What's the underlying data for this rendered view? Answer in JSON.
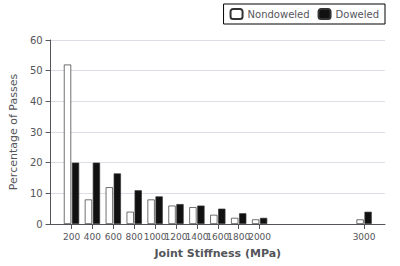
{
  "chart_data": {
    "type": "bar",
    "x": [
      200,
      400,
      600,
      800,
      1000,
      1200,
      1400,
      1600,
      1800,
      2000,
      3000
    ],
    "series": [
      {
        "name": "Nondoweled",
        "color": "#ffffff",
        "values": [
          52,
          8,
          12,
          4,
          8,
          6,
          5.5,
          3,
          2,
          1.5,
          1.5
        ]
      },
      {
        "name": "Doweled",
        "color": "#111111",
        "values": [
          20,
          20,
          16.5,
          11,
          9,
          6.5,
          6,
          5,
          3.5,
          2,
          4
        ]
      }
    ],
    "xlabel": "Joint Stiffness (MPa)",
    "ylabel": "Percentage of Passes",
    "xlim": [
      0,
      3200
    ],
    "xticks": [
      200,
      400,
      600,
      800,
      1000,
      1200,
      1400,
      1600,
      1800,
      2000,
      3000
    ],
    "ylim": [
      0,
      60
    ],
    "yticks": [
      0,
      10,
      20,
      30,
      40,
      50,
      60
    ],
    "grid": true,
    "legend": "upper right"
  }
}
